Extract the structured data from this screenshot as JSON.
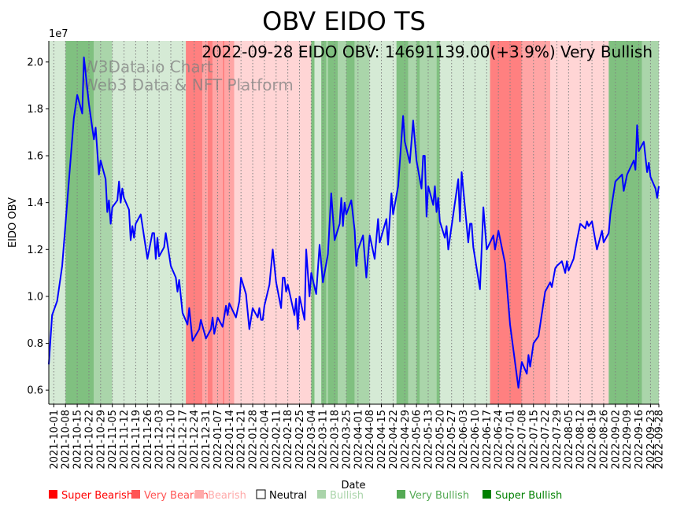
{
  "chart_data": {
    "type": "line",
    "title": "OBV EIDO TS",
    "xlabel": "Date",
    "ylabel": "EIDO OBV",
    "y_multiplier_label": "1e7",
    "annotation": "2022-09-28 EIDO OBV: 14691139.00(+3.9%) Very Bullish",
    "watermark": [
      "W3Data.io Chart",
      "Web3 Data & NFT Platform"
    ],
    "xlim": [
      "2021-09-28",
      "2022-09-28"
    ],
    "ylim": [
      0.54,
      2.09
    ],
    "yticks": [
      0.6,
      0.8,
      1.0,
      1.2,
      1.4,
      1.6,
      1.8,
      2.0
    ],
    "ytick_labels": [
      "0.6",
      "0.8",
      "1.0",
      "1.2",
      "1.4",
      "1.6",
      "1.8",
      "2.0"
    ],
    "xtick_labels": [
      "2021-10-01",
      "2021-10-08",
      "2021-10-15",
      "2021-10-22",
      "2021-10-29",
      "2021-11-05",
      "2021-11-12",
      "2021-11-19",
      "2021-11-26",
      "2021-12-03",
      "2021-12-10",
      "2021-12-17",
      "2021-12-24",
      "2021-12-31",
      "2022-01-07",
      "2022-01-14",
      "2022-01-21",
      "2022-01-28",
      "2022-02-04",
      "2022-02-11",
      "2022-02-18",
      "2022-02-25",
      "2022-03-04",
      "2022-03-11",
      "2022-03-18",
      "2022-03-25",
      "2022-04-01",
      "2022-04-08",
      "2022-04-15",
      "2022-04-22",
      "2022-04-29",
      "2022-05-06",
      "2022-05-13",
      "2022-05-20",
      "2022-05-27",
      "2022-06-03",
      "2022-06-10",
      "2022-06-17",
      "2022-06-24",
      "2022-07-01",
      "2022-07-08",
      "2022-07-15",
      "2022-07-22",
      "2022-07-29",
      "2022-08-05",
      "2022-08-12",
      "2022-08-19",
      "2022-08-26",
      "2022-09-02",
      "2022-09-09",
      "2022-09-16",
      "2022-09-23",
      "2022-09-28"
    ],
    "grid": "vertical dotted at x ticks",
    "series": [
      {
        "name": "EIDO OBV",
        "color": "#0000ff",
        "dates": [
          "2021-09-28",
          "2021-09-30",
          "2021-10-03",
          "2021-10-06",
          "2021-10-13",
          "2021-10-15",
          "2021-10-18",
          "2021-10-19",
          "2021-10-22",
          "2021-10-25",
          "2021-10-26",
          "2021-10-28",
          "2021-10-29",
          "2021-11-01",
          "2021-11-02",
          "2021-11-03",
          "2021-11-04",
          "2021-11-05",
          "2021-11-08",
          "2021-11-09",
          "2021-11-10",
          "2021-11-11",
          "2021-11-12",
          "2021-11-15",
          "2021-11-16",
          "2021-11-17",
          "2021-11-18",
          "2021-11-19",
          "2021-11-22",
          "2021-11-26",
          "2021-11-29",
          "2021-11-30",
          "2021-12-01",
          "2021-12-02",
          "2021-12-03",
          "2021-12-06",
          "2021-12-07",
          "2021-12-10",
          "2021-12-13",
          "2021-12-14",
          "2021-12-15",
          "2021-12-17",
          "2021-12-20",
          "2021-12-21",
          "2021-12-23",
          "2021-12-27",
          "2021-12-28",
          "2021-12-31",
          "2022-01-03",
          "2022-01-04",
          "2022-01-05",
          "2022-01-07",
          "2022-01-10",
          "2022-01-12",
          "2022-01-13",
          "2022-01-14",
          "2022-01-18",
          "2022-01-20",
          "2022-01-21",
          "2022-01-24",
          "2022-01-26",
          "2022-01-28",
          "2022-01-31",
          "2022-02-01",
          "2022-02-02",
          "2022-02-03",
          "2022-02-04",
          "2022-02-07",
          "2022-02-09",
          "2022-02-11",
          "2022-02-14",
          "2022-02-15",
          "2022-02-16",
          "2022-02-17",
          "2022-02-18",
          "2022-02-22",
          "2022-02-23",
          "2022-02-24",
          "2022-02-25",
          "2022-02-28",
          "2022-03-01",
          "2022-03-03",
          "2022-03-04",
          "2022-03-07",
          "2022-03-09",
          "2022-03-11",
          "2022-03-14",
          "2022-03-16",
          "2022-03-18",
          "2022-03-21",
          "2022-03-22",
          "2022-03-23",
          "2022-03-24",
          "2022-03-25",
          "2022-03-28",
          "2022-03-30",
          "2022-03-31",
          "2022-04-01",
          "2022-04-04",
          "2022-04-06",
          "2022-04-08",
          "2022-04-11",
          "2022-04-13",
          "2022-04-14",
          "2022-04-18",
          "2022-04-19",
          "2022-04-21",
          "2022-04-22",
          "2022-04-25",
          "2022-04-28",
          "2022-04-29",
          "2022-05-02",
          "2022-05-04",
          "2022-05-06",
          "2022-05-09",
          "2022-05-10",
          "2022-05-11",
          "2022-05-12",
          "2022-05-13",
          "2022-05-16",
          "2022-05-17",
          "2022-05-18",
          "2022-05-19",
          "2022-05-20",
          "2022-05-23",
          "2022-05-24",
          "2022-05-25",
          "2022-05-31",
          "2022-06-01",
          "2022-06-02",
          "2022-06-06",
          "2022-06-07",
          "2022-06-08",
          "2022-06-09",
          "2022-06-13",
          "2022-06-15",
          "2022-06-17",
          "2022-06-21",
          "2022-06-22",
          "2022-06-24",
          "2022-06-28",
          "2022-07-01",
          "2022-07-06",
          "2022-07-08",
          "2022-07-11",
          "2022-07-12",
          "2022-07-13",
          "2022-07-15",
          "2022-07-18",
          "2022-07-22",
          "2022-07-25",
          "2022-07-26",
          "2022-07-28",
          "2022-07-29",
          "2022-08-01",
          "2022-08-03",
          "2022-08-04",
          "2022-08-05",
          "2022-08-08",
          "2022-08-10",
          "2022-08-12",
          "2022-08-15",
          "2022-08-16",
          "2022-08-17",
          "2022-08-19",
          "2022-08-22",
          "2022-08-25",
          "2022-08-26",
          "2022-08-29",
          "2022-08-30",
          "2022-09-02",
          "2022-09-06",
          "2022-09-07",
          "2022-09-09",
          "2022-09-13",
          "2022-09-14",
          "2022-09-15",
          "2022-09-16",
          "2022-09-19",
          "2022-09-21",
          "2022-09-22",
          "2022-09-23",
          "2022-09-26",
          "2022-09-27",
          "2022-09-28"
        ],
        "values": [
          0.71,
          0.92,
          0.98,
          1.13,
          1.76,
          1.86,
          1.78,
          2.02,
          1.82,
          1.67,
          1.72,
          1.52,
          1.58,
          1.5,
          1.36,
          1.41,
          1.31,
          1.38,
          1.41,
          1.49,
          1.4,
          1.46,
          1.42,
          1.37,
          1.24,
          1.3,
          1.25,
          1.31,
          1.35,
          1.16,
          1.27,
          1.27,
          1.16,
          1.25,
          1.17,
          1.21,
          1.27,
          1.13,
          1.08,
          1.02,
          1.07,
          0.93,
          0.88,
          0.95,
          0.81,
          0.86,
          0.9,
          0.82,
          0.86,
          0.91,
          0.84,
          0.91,
          0.87,
          0.96,
          0.92,
          0.97,
          0.91,
          0.98,
          1.08,
          1.01,
          0.86,
          0.95,
          0.91,
          0.95,
          0.9,
          0.9,
          0.96,
          1.05,
          1.2,
          1.06,
          0.95,
          1.08,
          1.08,
          1.02,
          1.05,
          0.92,
          0.99,
          0.86,
          1.0,
          0.9,
          1.2,
          1.0,
          1.1,
          1.01,
          1.22,
          1.06,
          1.18,
          1.44,
          1.24,
          1.31,
          1.42,
          1.3,
          1.4,
          1.35,
          1.41,
          1.28,
          1.13,
          1.2,
          1.26,
          1.08,
          1.26,
          1.16,
          1.33,
          1.23,
          1.33,
          1.22,
          1.44,
          1.35,
          1.47,
          1.77,
          1.66,
          1.57,
          1.75,
          1.58,
          1.46,
          1.6,
          1.6,
          1.34,
          1.47,
          1.39,
          1.47,
          1.36,
          1.42,
          1.32,
          1.25,
          1.3,
          1.2,
          1.5,
          1.32,
          1.53,
          1.23,
          1.31,
          1.31,
          1.21,
          1.03,
          1.38,
          1.2,
          1.26,
          1.2,
          1.28,
          1.14,
          0.88,
          0.61,
          0.72,
          0.67,
          0.75,
          0.7,
          0.8,
          0.83,
          1.02,
          1.06,
          1.04,
          1.12,
          1.13,
          1.15,
          1.1,
          1.15,
          1.11,
          1.16,
          1.24,
          1.31,
          1.29,
          1.32,
          1.3,
          1.32,
          1.2,
          1.28,
          1.23,
          1.27,
          1.35,
          1.49,
          1.52,
          1.45,
          1.52,
          1.58,
          1.54,
          1.73,
          1.62,
          1.66,
          1.53,
          1.57,
          1.51,
          1.46,
          1.42,
          1.47
        ]
      }
    ],
    "sentiment_colors": {
      "Super Bearish": "#ff8080",
      "Very Bearish": "#ffa5a5",
      "Bearish": "#ffd5d5",
      "Bullish": "#d5ead5",
      "Very Bullish": "#aad5aa",
      "Super Bullish": "#80c080"
    },
    "bands": [
      {
        "start": "2021-09-28",
        "end": "2021-10-08",
        "sentiment": "Bullish"
      },
      {
        "start": "2021-10-08",
        "end": "2021-10-25",
        "sentiment": "Super Bullish"
      },
      {
        "start": "2021-10-25",
        "end": "2021-11-05",
        "sentiment": "Very Bullish"
      },
      {
        "start": "2021-11-05",
        "end": "2021-12-19",
        "sentiment": "Bullish"
      },
      {
        "start": "2021-12-19",
        "end": "2021-12-29",
        "sentiment": "Super Bearish"
      },
      {
        "start": "2021-12-29",
        "end": "2022-01-01",
        "sentiment": "Very Bearish"
      },
      {
        "start": "2022-01-01",
        "end": "2022-01-04",
        "sentiment": "Super Bearish"
      },
      {
        "start": "2022-01-04",
        "end": "2022-01-10",
        "sentiment": "Very Bearish"
      },
      {
        "start": "2022-01-10",
        "end": "2022-01-11",
        "sentiment": "Super Bearish"
      },
      {
        "start": "2022-01-11",
        "end": "2022-01-17",
        "sentiment": "Very Bearish"
      },
      {
        "start": "2022-01-17",
        "end": "2022-03-04",
        "sentiment": "Bearish"
      },
      {
        "start": "2022-03-04",
        "end": "2022-03-06",
        "sentiment": "Super Bullish"
      },
      {
        "start": "2022-03-06",
        "end": "2022-03-10",
        "sentiment": "Bullish"
      },
      {
        "start": "2022-03-10",
        "end": "2022-03-13",
        "sentiment": "Super Bullish"
      },
      {
        "start": "2022-03-13",
        "end": "2022-03-14",
        "sentiment": "Very Bullish"
      },
      {
        "start": "2022-03-14",
        "end": "2022-03-20",
        "sentiment": "Super Bullish"
      },
      {
        "start": "2022-03-20",
        "end": "2022-03-25",
        "sentiment": "Very Bullish"
      },
      {
        "start": "2022-03-25",
        "end": "2022-03-30",
        "sentiment": "Super Bullish"
      },
      {
        "start": "2022-03-30",
        "end": "2022-04-08",
        "sentiment": "Very Bullish"
      },
      {
        "start": "2022-04-08",
        "end": "2022-04-24",
        "sentiment": "Bullish"
      },
      {
        "start": "2022-04-24",
        "end": "2022-05-01",
        "sentiment": "Super Bullish"
      },
      {
        "start": "2022-05-01",
        "end": "2022-05-06",
        "sentiment": "Very Bullish"
      },
      {
        "start": "2022-05-06",
        "end": "2022-05-08",
        "sentiment": "Super Bullish"
      },
      {
        "start": "2022-05-08",
        "end": "2022-05-18",
        "sentiment": "Very Bullish"
      },
      {
        "start": "2022-05-18",
        "end": "2022-05-20",
        "sentiment": "Super Bullish"
      },
      {
        "start": "2022-05-20",
        "end": "2022-06-19",
        "sentiment": "Bullish"
      },
      {
        "start": "2022-06-19",
        "end": "2022-07-08",
        "sentiment": "Super Bearish"
      },
      {
        "start": "2022-07-08",
        "end": "2022-07-25",
        "sentiment": "Very Bearish"
      },
      {
        "start": "2022-07-25",
        "end": "2022-08-29",
        "sentiment": "Bearish"
      },
      {
        "start": "2022-08-29",
        "end": "2022-09-18",
        "sentiment": "Super Bullish"
      },
      {
        "start": "2022-09-18",
        "end": "2022-09-28",
        "sentiment": "Very Bullish"
      }
    ],
    "legend": {
      "placement": "bottom",
      "items": [
        {
          "label": "Super Bearish",
          "color": "#ff0000"
        },
        {
          "label": "Very Bearish",
          "color": "#ff5555"
        },
        {
          "label": "Bearish",
          "color": "#ffaaaa"
        },
        {
          "label": "Neutral",
          "color": "#ffffff"
        },
        {
          "label": "Bullish",
          "color": "#aad4aa"
        },
        {
          "label": "Very Bullish",
          "color": "#55aa55"
        },
        {
          "label": "Super Bullish",
          "color": "#008000"
        }
      ]
    }
  }
}
